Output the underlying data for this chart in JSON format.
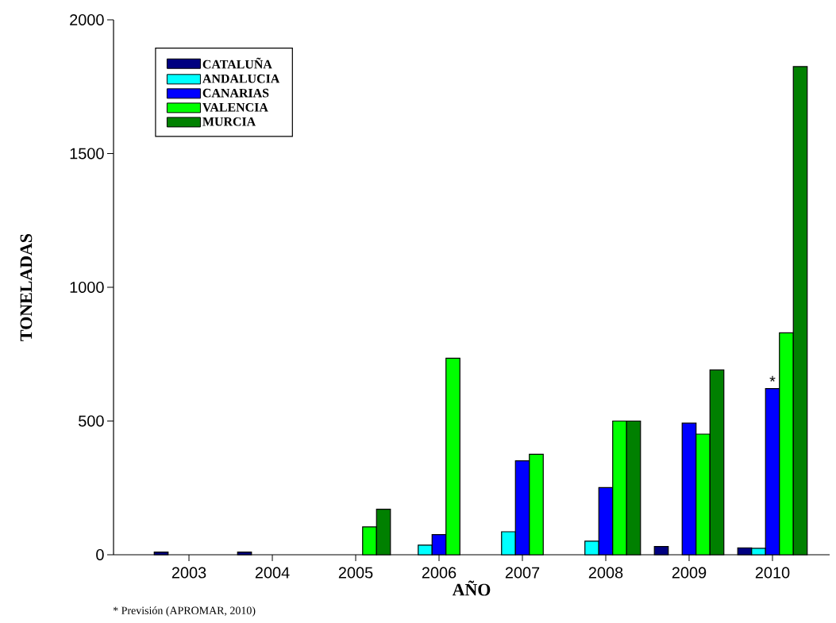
{
  "chart_data": {
    "type": "bar",
    "xlabel": "AÑO",
    "ylabel": "TONELADAS",
    "categories": [
      "2003",
      "2004",
      "2005",
      "2006",
      "2007",
      "2008",
      "2009",
      "2010"
    ],
    "series": [
      {
        "name": "CATALUÑA",
        "color": "#000080",
        "values": [
          10,
          10,
          null,
          null,
          null,
          null,
          31,
          26
        ]
      },
      {
        "name": "ANDALUCIA",
        "color": "#00ffff",
        "values": [
          null,
          null,
          null,
          36,
          86,
          51,
          null,
          24
        ]
      },
      {
        "name": "CANARIAS",
        "color": "#0000ff",
        "values": [
          null,
          null,
          null,
          75,
          351,
          251,
          492,
          621
        ]
      },
      {
        "name": "VALENCIA",
        "color": "#00ff00",
        "values": [
          null,
          null,
          104,
          735,
          376,
          500,
          451,
          830
        ]
      },
      {
        "name": "MURCIA",
        "color": "#008000",
        "values": [
          null,
          null,
          170,
          null,
          null,
          500,
          691,
          1825
        ]
      }
    ],
    "ylim": [
      0,
      2000
    ],
    "yticks": [
      0,
      500,
      1000,
      1500,
      2000
    ],
    "legend": "top left",
    "annotations": [
      {
        "text": "*",
        "x": "2010",
        "y": 621
      },
      "* Previsión (APROMAR, 2010)"
    ]
  }
}
